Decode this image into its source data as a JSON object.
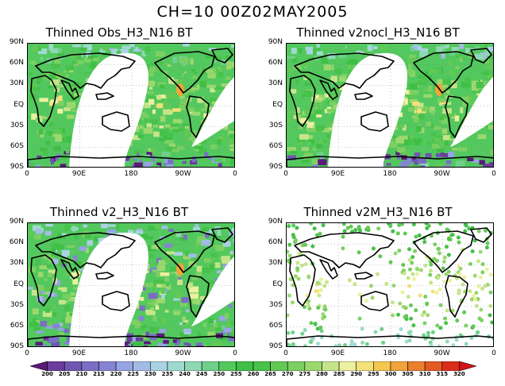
{
  "title": "CH=10   00Z02MAY2005",
  "panels": [
    {
      "title": "Thinned Obs_H3_N16 BT",
      "coverage": "swath"
    },
    {
      "title": "Thinned v2nocl_H3_N16 BT",
      "coverage": "swath"
    },
    {
      "title": "Thinned v2_H3_N16 BT",
      "coverage": "swath"
    },
    {
      "title": "Thinned v2M_H3_N16 BT",
      "coverage": "sparse"
    }
  ],
  "lat_labels": [
    "90N",
    "60N",
    "30N",
    "EQ",
    "30S",
    "60S",
    "90S"
  ],
  "lon_labels": [
    "0",
    "90E",
    "180",
    "90W",
    "0"
  ],
  "colorbar": {
    "labels": [
      "200",
      "205",
      "210",
      "215",
      "220",
      "225",
      "230",
      "235",
      "240",
      "245",
      "250",
      "255",
      "260",
      "265",
      "270",
      "275",
      "280",
      "285",
      "290",
      "295",
      "300",
      "305",
      "310",
      "315",
      "320"
    ],
    "colors": [
      "#5b1a7a",
      "#6a3c9b",
      "#6f56b0",
      "#7a6ec4",
      "#8584d4",
      "#95a4e2",
      "#a3bce6",
      "#a9d3e4",
      "#9fdad0",
      "#8fd8b4",
      "#6fd08a",
      "#52c85e",
      "#3fbf45",
      "#47c24a",
      "#62c955",
      "#7cd062",
      "#9bd86e",
      "#c6e58a",
      "#ecf0a0",
      "#f5e178",
      "#f4c74e",
      "#f0a43a",
      "#ea7f2e",
      "#e35a22",
      "#da2e1a",
      "#d1141a"
    ]
  }
}
